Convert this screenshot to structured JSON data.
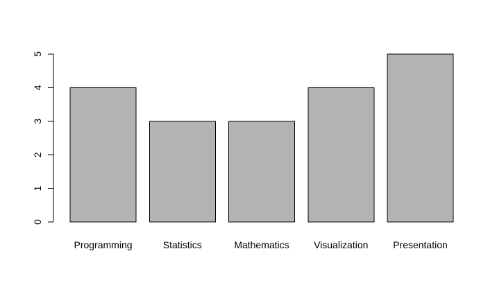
{
  "chart_data": {
    "type": "bar",
    "title": "",
    "xlabel": "",
    "ylabel": "",
    "categories": [
      "Programming",
      "Statistics",
      "Mathematics",
      "Visualization",
      "Presentation"
    ],
    "values": [
      4,
      3,
      3,
      4,
      5
    ],
    "ylim": [
      0,
      5
    ],
    "yticks": [
      0,
      1,
      2,
      3,
      4,
      5
    ],
    "ytick_labels": [
      "0",
      "1",
      "2",
      "3",
      "4",
      "5"
    ],
    "grid": false,
    "legend": "none",
    "colors": {
      "bar_fill": "#b3b3b3",
      "bar_stroke": "#000000",
      "axis": "#000000",
      "background": "#ffffff"
    }
  }
}
